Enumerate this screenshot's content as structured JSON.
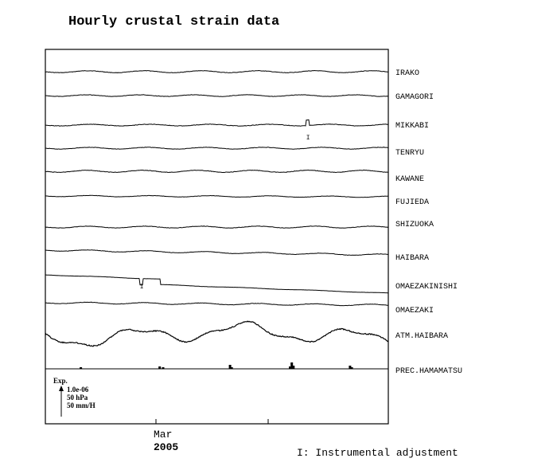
{
  "chart_data": {
    "type": "line",
    "title": "Hourly crustal strain data",
    "x_axis": {
      "month_label": "Mar",
      "year_label": "2005"
    },
    "series": [
      {
        "name": "IRAKO",
        "kind": "strain",
        "baseline": 0,
        "amp": 1.2,
        "freq": 38,
        "trend": 0,
        "noise": 0.6
      },
      {
        "name": "GAMAGORI",
        "kind": "strain",
        "baseline": 0,
        "amp": 1.0,
        "freq": 40,
        "trend": 0,
        "noise": 0.5
      },
      {
        "name": "MIKKABI",
        "kind": "strain",
        "baseline": 0,
        "amp": 1.0,
        "freq": 36,
        "trend": 0,
        "noise": 0.6,
        "spike_at": 0.765,
        "spike_height": 7,
        "adjustment_at": 0.765
      },
      {
        "name": "TENRYU",
        "kind": "strain",
        "baseline": 0,
        "amp": 1.1,
        "freq": 37,
        "trend": 0,
        "noise": 0.5
      },
      {
        "name": "KAWANE",
        "kind": "strain",
        "baseline": 0,
        "amp": 1.3,
        "freq": 39,
        "trend": 0,
        "noise": 0.6
      },
      {
        "name": "FUJIEDA",
        "kind": "strain",
        "baseline": 0,
        "amp": 0.8,
        "freq": 36,
        "trend": 1,
        "noise": 0.4
      },
      {
        "name": "SHIZUOKA",
        "kind": "strain",
        "baseline": 0,
        "amp": 1.1,
        "freq": 38,
        "trend": 0,
        "noise": 0.5
      },
      {
        "name": "HAIBARA",
        "kind": "strain",
        "baseline": 0,
        "amp": 1.0,
        "freq": 37,
        "trend": 6,
        "noise": 0.5
      },
      {
        "name": "OMAEZAKINISHI",
        "kind": "strain",
        "baseline": 0,
        "amp": 0.3,
        "freq": 30,
        "trend": 16,
        "noise": 0.2,
        "step_at": 0.335,
        "step_size": 7,
        "spike_at": 0.28,
        "spike_height": -8,
        "adjustment_at": 0.28
      },
      {
        "name": "OMAEZAKI",
        "kind": "strain",
        "baseline": 0,
        "amp": 1.0,
        "freq": 38,
        "trend": 3,
        "noise": 0.5
      },
      {
        "name": "ATM.HAIBARA",
        "kind": "pressure"
      },
      {
        "name": "PREC.HAMAMATSU",
        "kind": "precip",
        "events": [
          [
            0.1,
            2
          ],
          [
            0.33,
            3
          ],
          [
            0.34,
            2
          ],
          [
            0.535,
            5
          ],
          [
            0.54,
            2
          ],
          [
            0.71,
            3
          ],
          [
            0.715,
            8
          ],
          [
            0.72,
            4
          ],
          [
            0.885,
            4
          ],
          [
            0.89,
            2
          ]
        ]
      }
    ],
    "scale_bar": {
      "label": "Exp.",
      "values": [
        "1.0e-06",
        "50 hPa",
        "50 mm/H"
      ]
    },
    "footnote": "I: Instrumental adjustment",
    "adjustment_marker": "I"
  }
}
